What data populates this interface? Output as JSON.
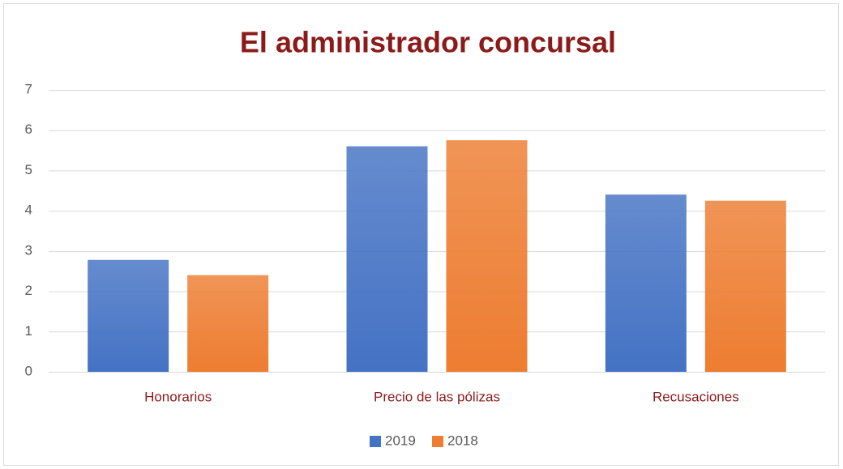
{
  "chart_data": {
    "type": "bar",
    "title": "El administrador concursal",
    "categories": [
      "Honorarios",
      "Precio de las pólizas",
      "Recusaciones"
    ],
    "series": [
      {
        "name": "2019",
        "color": "#4472c4",
        "values": [
          2.78,
          5.6,
          4.4
        ]
      },
      {
        "name": "2018",
        "color": "#ed7d31",
        "values": [
          2.4,
          5.75,
          4.25
        ]
      }
    ],
    "ylim": [
      0,
      7
    ],
    "yticks": [
      0,
      1,
      2,
      3,
      4,
      5,
      6,
      7
    ],
    "grid": true,
    "legend": "bottom"
  }
}
